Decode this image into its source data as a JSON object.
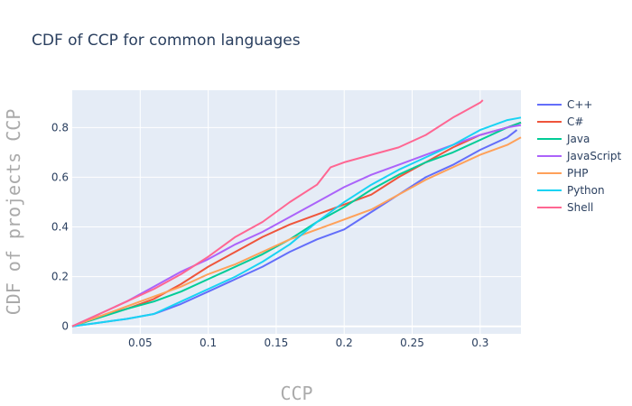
{
  "chart_data": {
    "type": "line",
    "title": "CDF of CCP for common languages",
    "xlabel": "CCP",
    "ylabel": "CDF of projects CCP",
    "xlim": [
      0.0,
      0.33
    ],
    "ylim": [
      -0.03,
      0.95
    ],
    "xticks": [
      0.05,
      0.1,
      0.15,
      0.2,
      0.25,
      0.3
    ],
    "xtick_labels": [
      "0.05",
      "0.1",
      "0.15",
      "0.2",
      "0.25",
      "0.3"
    ],
    "yticks": [
      0,
      0.2,
      0.4,
      0.6,
      0.8
    ],
    "ytick_labels": [
      "0",
      "0.2",
      "0.4",
      "0.6",
      "0.8"
    ],
    "grid": true,
    "legend_position": "right",
    "series": [
      {
        "name": "C++",
        "color": "#636efa",
        "x": [
          0.0,
          0.02,
          0.04,
          0.06,
          0.08,
          0.1,
          0.12,
          0.14,
          0.16,
          0.18,
          0.2,
          0.22,
          0.24,
          0.26,
          0.28,
          0.3,
          0.32,
          0.327
        ],
        "y": [
          0.0,
          0.015,
          0.03,
          0.05,
          0.09,
          0.14,
          0.19,
          0.24,
          0.3,
          0.35,
          0.39,
          0.46,
          0.53,
          0.6,
          0.65,
          0.71,
          0.76,
          0.79
        ]
      },
      {
        "name": "C#",
        "color": "#ef553b",
        "x": [
          0.0,
          0.02,
          0.04,
          0.06,
          0.08,
          0.1,
          0.12,
          0.14,
          0.16,
          0.18,
          0.2,
          0.22,
          0.24,
          0.26,
          0.28,
          0.3,
          0.32,
          0.33
        ],
        "y": [
          0.0,
          0.04,
          0.07,
          0.11,
          0.17,
          0.24,
          0.3,
          0.36,
          0.41,
          0.45,
          0.49,
          0.53,
          0.6,
          0.66,
          0.72,
          0.77,
          0.8,
          0.82
        ]
      },
      {
        "name": "Java",
        "color": "#00cc96",
        "x": [
          0.0,
          0.02,
          0.04,
          0.06,
          0.08,
          0.1,
          0.12,
          0.14,
          0.16,
          0.18,
          0.2,
          0.22,
          0.24,
          0.26,
          0.28,
          0.3,
          0.32,
          0.33
        ],
        "y": [
          0.0,
          0.035,
          0.07,
          0.1,
          0.14,
          0.19,
          0.24,
          0.29,
          0.35,
          0.42,
          0.48,
          0.55,
          0.61,
          0.66,
          0.7,
          0.75,
          0.8,
          0.82
        ]
      },
      {
        "name": "JavaScript",
        "color": "#ab63fa",
        "x": [
          0.0,
          0.02,
          0.04,
          0.06,
          0.08,
          0.1,
          0.12,
          0.14,
          0.16,
          0.18,
          0.2,
          0.22,
          0.24,
          0.26,
          0.28,
          0.3,
          0.32,
          0.33
        ],
        "y": [
          0.0,
          0.05,
          0.1,
          0.16,
          0.22,
          0.27,
          0.33,
          0.38,
          0.44,
          0.5,
          0.56,
          0.61,
          0.65,
          0.69,
          0.73,
          0.77,
          0.8,
          0.81
        ]
      },
      {
        "name": "PHP",
        "color": "#ffa15a",
        "x": [
          0.0,
          0.02,
          0.04,
          0.06,
          0.08,
          0.1,
          0.12,
          0.14,
          0.16,
          0.18,
          0.2,
          0.22,
          0.24,
          0.26,
          0.28,
          0.3,
          0.32,
          0.33
        ],
        "y": [
          0.0,
          0.04,
          0.08,
          0.12,
          0.16,
          0.21,
          0.25,
          0.3,
          0.35,
          0.39,
          0.43,
          0.47,
          0.53,
          0.59,
          0.64,
          0.69,
          0.73,
          0.76
        ]
      },
      {
        "name": "Python",
        "color": "#19d3f3",
        "x": [
          0.0,
          0.02,
          0.04,
          0.06,
          0.08,
          0.1,
          0.12,
          0.14,
          0.16,
          0.18,
          0.2,
          0.22,
          0.24,
          0.26,
          0.28,
          0.3,
          0.32,
          0.33
        ],
        "y": [
          0.0,
          0.015,
          0.03,
          0.05,
          0.1,
          0.15,
          0.2,
          0.26,
          0.33,
          0.42,
          0.5,
          0.57,
          0.63,
          0.68,
          0.73,
          0.79,
          0.83,
          0.84
        ]
      },
      {
        "name": "Shell",
        "color": "#ff6692",
        "x": [
          0.0,
          0.02,
          0.04,
          0.06,
          0.08,
          0.1,
          0.12,
          0.14,
          0.16,
          0.18,
          0.19,
          0.2,
          0.22,
          0.24,
          0.26,
          0.28,
          0.3,
          0.302
        ],
        "y": [
          0.0,
          0.05,
          0.1,
          0.15,
          0.21,
          0.28,
          0.36,
          0.42,
          0.5,
          0.57,
          0.64,
          0.66,
          0.69,
          0.72,
          0.77,
          0.84,
          0.9,
          0.91
        ]
      }
    ]
  }
}
